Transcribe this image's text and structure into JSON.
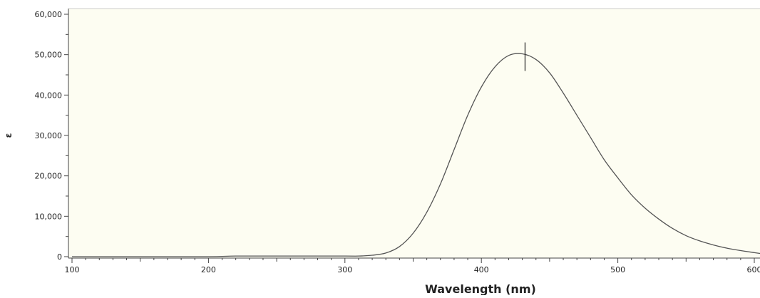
{
  "chart_data": {
    "type": "line",
    "xlabel": "Wavelength (nm)",
    "ylabel": "ε",
    "xlim": [
      100,
      600
    ],
    "ylim": [
      0,
      60000
    ],
    "x_ticks": [
      100,
      200,
      300,
      400,
      500,
      600
    ],
    "x_tick_labels": [
      "100",
      "200",
      "300",
      "400",
      "500",
      "600"
    ],
    "y_ticks": [
      0,
      10000,
      20000,
      30000,
      40000,
      50000,
      60000
    ],
    "y_tick_labels": [
      "0",
      "10,000",
      "20,000",
      "30,000",
      "40,000",
      "50,000",
      "60,000"
    ],
    "grid": false,
    "peak_marker": {
      "x": 432,
      "y": 50200
    },
    "series": [
      {
        "x": [
          100,
          150,
          200,
          220,
          250,
          300,
          310,
          320,
          330,
          340,
          350,
          360,
          370,
          380,
          390,
          400,
          410,
          420,
          430,
          440,
          450,
          460,
          470,
          480,
          490,
          500,
          510,
          520,
          530,
          540,
          550,
          560,
          570,
          580,
          590,
          600,
          606
        ],
        "y": [
          0,
          0,
          0,
          150,
          150,
          150,
          150,
          350,
          900,
          2500,
          5800,
          11000,
          18000,
          26500,
          35000,
          42000,
          47000,
          49800,
          50200,
          48800,
          45500,
          40500,
          35000,
          29500,
          24000,
          19500,
          15300,
          12000,
          9300,
          7000,
          5200,
          3900,
          2900,
          2100,
          1500,
          1000,
          700
        ],
        "color": "#555555"
      }
    ]
  }
}
